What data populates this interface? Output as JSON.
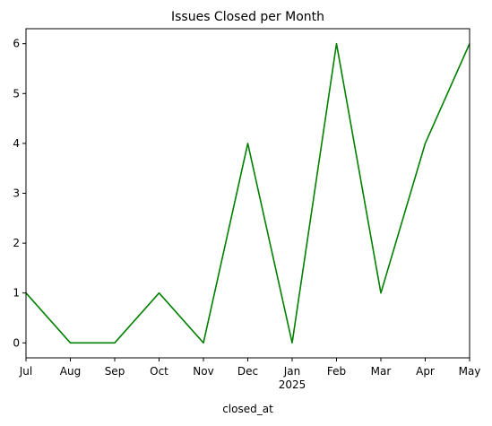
{
  "chart_data": {
    "type": "line",
    "title": "Issues Closed per Month",
    "xlabel": "closed_at",
    "ylabel": "",
    "categories": [
      "Jul",
      "Aug",
      "Sep",
      "Oct",
      "Nov",
      "Dec",
      "Jan",
      "Feb",
      "Mar",
      "Apr",
      "May"
    ],
    "year_label": {
      "category": "Jan",
      "text": "2025"
    },
    "series": [
      {
        "values": [
          1,
          0,
          0,
          1,
          0,
          4,
          0,
          6,
          1,
          4,
          6
        ],
        "color": "#008000"
      }
    ],
    "yticks": [
      0,
      1,
      2,
      3,
      4,
      5,
      6
    ],
    "ylim": [
      -0.3,
      6.3
    ],
    "grid": false,
    "legend": "none"
  }
}
